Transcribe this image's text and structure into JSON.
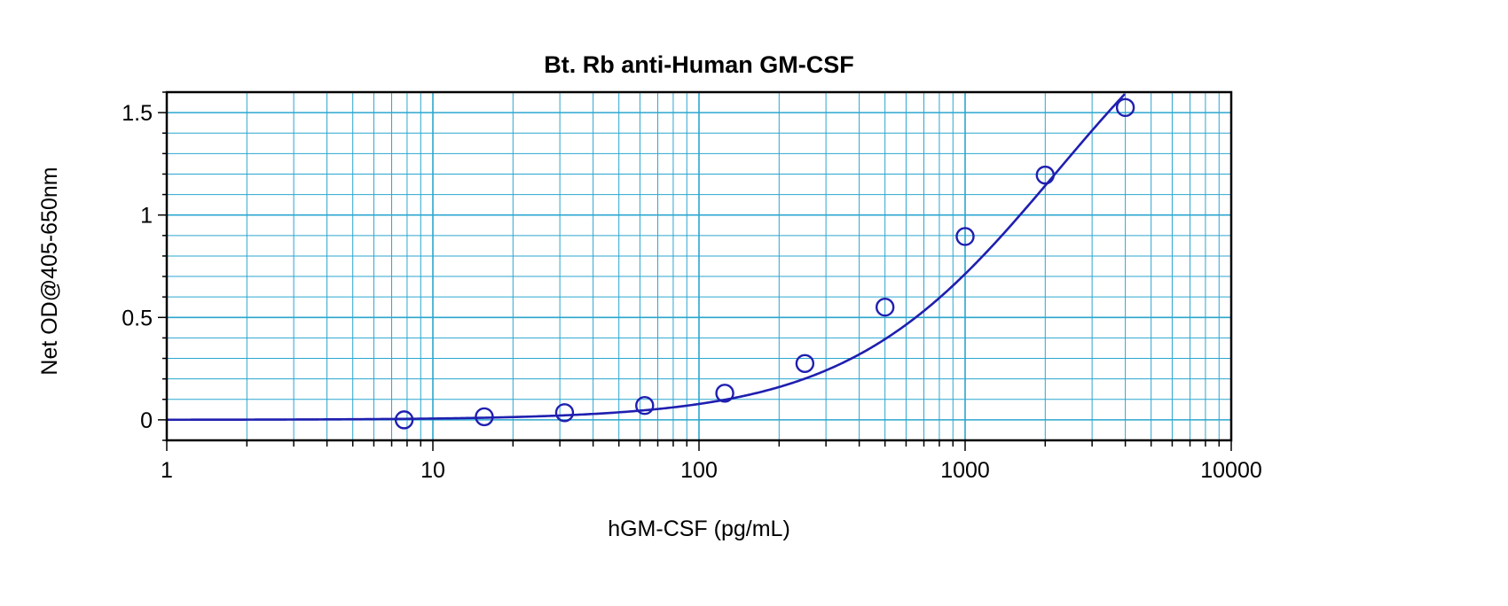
{
  "chart_data": {
    "type": "scatter",
    "title": "Bt. Rb anti-Human GM-CSF",
    "xlabel": "hGM-CSF (pg/mL)",
    "ylabel": "Net OD@405-650nm",
    "x_scale": "log",
    "xlim": [
      1,
      10000
    ],
    "ylim": [
      -0.1,
      1.6
    ],
    "grid": true,
    "x_ticks": [
      {
        "value": 1,
        "label": "1"
      },
      {
        "value": 10,
        "label": "10"
      },
      {
        "value": 100,
        "label": "100"
      },
      {
        "value": 1000,
        "label": "1000"
      },
      {
        "value": 10000,
        "label": "10000"
      }
    ],
    "y_ticks": [
      {
        "value": 0,
        "label": "0"
      },
      {
        "value": 0.5,
        "label": "0.5"
      },
      {
        "value": 1,
        "label": "1"
      },
      {
        "value": 1.5,
        "label": "1.5"
      }
    ],
    "series": [
      {
        "points": [
          {
            "x": 7.8,
            "y": 0.0
          },
          {
            "x": 15.6,
            "y": 0.015
          },
          {
            "x": 31.25,
            "y": 0.035
          },
          {
            "x": 62.5,
            "y": 0.07
          },
          {
            "x": 125,
            "y": 0.13
          },
          {
            "x": 250,
            "y": 0.275
          },
          {
            "x": 500,
            "y": 0.55
          },
          {
            "x": 1000,
            "y": 0.895
          },
          {
            "x": 2000,
            "y": 1.195
          },
          {
            "x": 4000,
            "y": 1.525
          }
        ]
      }
    ],
    "fit_curve": {
      "model": "4PL",
      "A": 0,
      "D": 2.43,
      "C": 2226,
      "B": 1.1
    },
    "colors": {
      "series": "#1f1fb0",
      "grid": "#2aa6cf",
      "frame": "#000000"
    }
  }
}
